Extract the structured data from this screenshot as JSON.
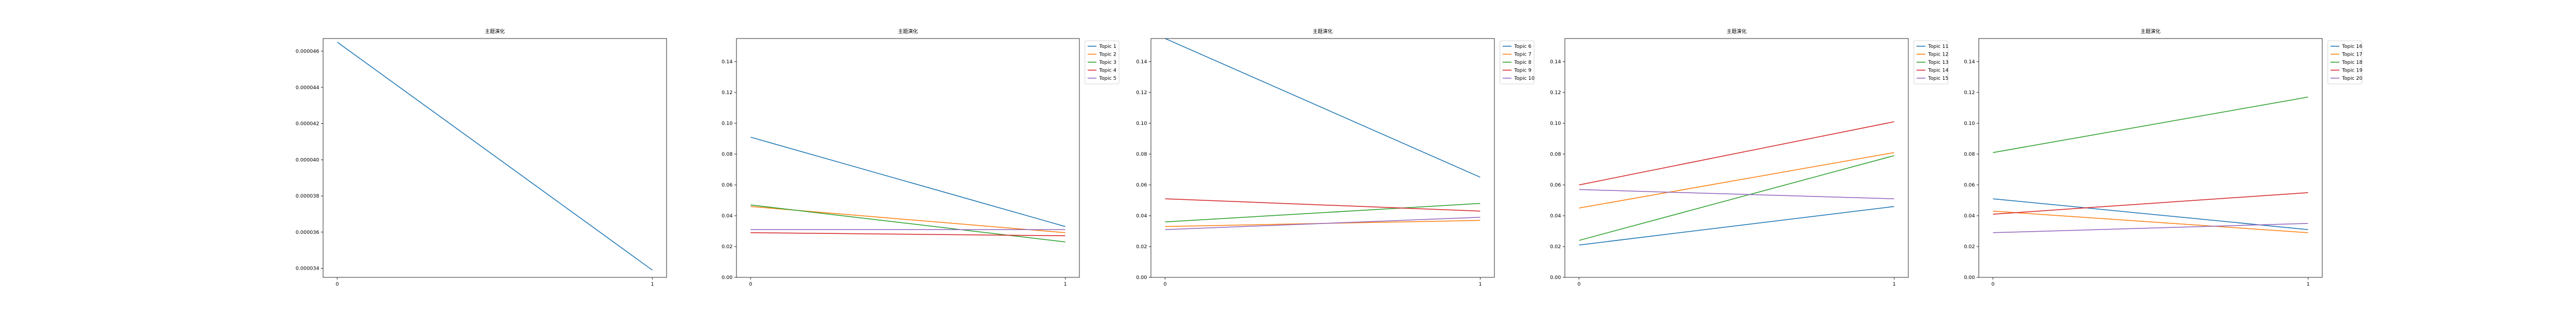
{
  "chart_data": [
    {
      "type": "line",
      "title": "主题演化",
      "x": [
        0,
        1
      ],
      "xticks": [
        "0",
        "1"
      ],
      "ylim": [
        3.35e-05,
        4.67e-05
      ],
      "yticks": [
        3.4e-05,
        3.6e-05,
        3.8e-05,
        4e-05,
        4.2e-05,
        4.4e-05,
        4.6e-05
      ],
      "ytick_labels": [
        "0.000034",
        "0.000036",
        "0.000038",
        "0.000040",
        "0.000042",
        "0.000044",
        "0.000046"
      ],
      "grid": false,
      "legend": "none",
      "series": [
        {
          "name": "",
          "color": "#1f77b4",
          "values": [
            4.65e-05,
            3.39e-05
          ]
        }
      ]
    },
    {
      "type": "line",
      "title": "主题演化",
      "x": [
        0,
        1
      ],
      "xticks": [
        "0",
        "1"
      ],
      "ylim": [
        0,
        0.155
      ],
      "yticks": [
        0,
        0.02,
        0.04,
        0.06,
        0.08,
        0.1,
        0.12,
        0.14
      ],
      "ytick_labels": [
        "0.00",
        "0.02",
        "0.04",
        "0.06",
        "0.08",
        "0.10",
        "0.12",
        "0.14"
      ],
      "grid": false,
      "legend": "outside-right",
      "series": [
        {
          "name": "Topic 1",
          "color": "#1f77b4",
          "values": [
            0.091,
            0.033
          ]
        },
        {
          "name": "Topic 2",
          "color": "#ff7f0e",
          "values": [
            0.046,
            0.029
          ]
        },
        {
          "name": "Topic 3",
          "color": "#2ca02c",
          "values": [
            0.047,
            0.023
          ]
        },
        {
          "name": "Topic 4",
          "color": "#d62728",
          "values": [
            0.029,
            0.027
          ]
        },
        {
          "name": "Topic 5",
          "color": "#9467bd",
          "values": [
            0.031,
            0.031
          ]
        }
      ]
    },
    {
      "type": "line",
      "title": "主题演化",
      "x": [
        0,
        1
      ],
      "xticks": [
        "0",
        "1"
      ],
      "ylim": [
        0,
        0.155
      ],
      "yticks": [
        0,
        0.02,
        0.04,
        0.06,
        0.08,
        0.1,
        0.12,
        0.14
      ],
      "ytick_labels": [
        "0.00",
        "0.02",
        "0.04",
        "0.06",
        "0.08",
        "0.10",
        "0.12",
        "0.14"
      ],
      "grid": false,
      "legend": "outside-right",
      "series": [
        {
          "name": "Topic 6",
          "color": "#1f77b4",
          "values": [
            0.155,
            0.065
          ]
        },
        {
          "name": "Topic 7",
          "color": "#ff7f0e",
          "values": [
            0.033,
            0.037
          ]
        },
        {
          "name": "Topic 8",
          "color": "#2ca02c",
          "values": [
            0.036,
            0.048
          ]
        },
        {
          "name": "Topic 9",
          "color": "#d62728",
          "values": [
            0.051,
            0.043
          ]
        },
        {
          "name": "Topic 10",
          "color": "#9467bd",
          "values": [
            0.031,
            0.039
          ]
        }
      ]
    },
    {
      "type": "line",
      "title": "主题演化",
      "x": [
        0,
        1
      ],
      "xticks": [
        "0",
        "1"
      ],
      "ylim": [
        0,
        0.155
      ],
      "yticks": [
        0,
        0.02,
        0.04,
        0.06,
        0.08,
        0.1,
        0.12,
        0.14
      ],
      "ytick_labels": [
        "0.00",
        "0.02",
        "0.04",
        "0.06",
        "0.08",
        "0.10",
        "0.12",
        "0.14"
      ],
      "grid": false,
      "legend": "outside-right",
      "series": [
        {
          "name": "Topic 11",
          "color": "#1f77b4",
          "values": [
            0.021,
            0.046
          ]
        },
        {
          "name": "Topic 12",
          "color": "#ff7f0e",
          "values": [
            0.045,
            0.081
          ]
        },
        {
          "name": "Topic 13",
          "color": "#2ca02c",
          "values": [
            0.024,
            0.079
          ]
        },
        {
          "name": "Topic 14",
          "color": "#d62728",
          "values": [
            0.06,
            0.101
          ]
        },
        {
          "name": "Topic 15",
          "color": "#9467bd",
          "values": [
            0.057,
            0.051
          ]
        }
      ]
    },
    {
      "type": "line",
      "title": "主题演化",
      "x": [
        0,
        1
      ],
      "xticks": [
        "0",
        "1"
      ],
      "ylim": [
        0,
        0.155
      ],
      "yticks": [
        0,
        0.02,
        0.04,
        0.06,
        0.08,
        0.1,
        0.12,
        0.14
      ],
      "ytick_labels": [
        "0.00",
        "0.02",
        "0.04",
        "0.06",
        "0.08",
        "0.10",
        "0.12",
        "0.14"
      ],
      "grid": false,
      "legend": "outside-right",
      "series": [
        {
          "name": "Topic 16",
          "color": "#1f77b4",
          "values": [
            0.051,
            0.031
          ]
        },
        {
          "name": "Topic 17",
          "color": "#ff7f0e",
          "values": [
            0.043,
            0.029
          ]
        },
        {
          "name": "Topic 18",
          "color": "#2ca02c",
          "values": [
            0.081,
            0.117
          ]
        },
        {
          "name": "Topic 19",
          "color": "#d62728",
          "values": [
            0.041,
            0.055
          ]
        },
        {
          "name": "Topic 20",
          "color": "#9467bd",
          "values": [
            0.029,
            0.035
          ]
        }
      ]
    }
  ]
}
